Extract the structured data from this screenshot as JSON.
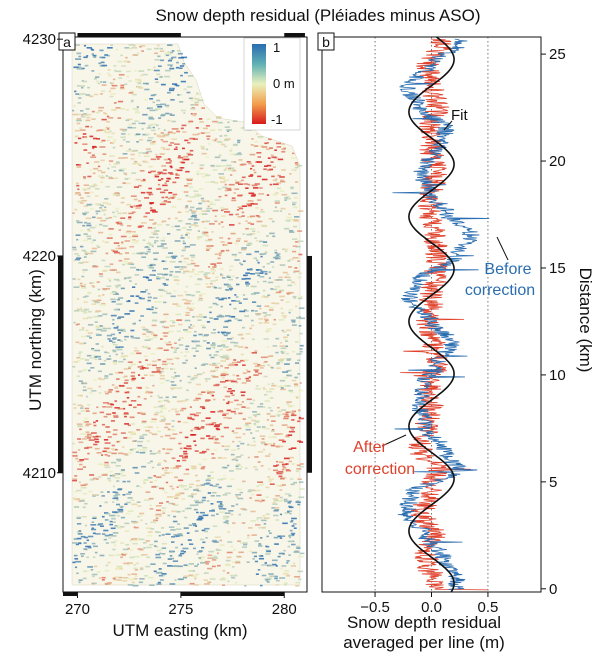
{
  "figure": {
    "title": "Snow depth residual (Pléiades minus ASO)"
  },
  "chart_data": [
    {
      "panel_label": "a",
      "type": "heatmap",
      "xlabel": "UTM easting (km)",
      "ylabel": "UTM northing (km)",
      "x_ticks": [
        270,
        275,
        280
      ],
      "y_ticks": [
        4210,
        4220,
        4230
      ],
      "xlim": [
        269.3,
        281.1
      ],
      "ylim": [
        4204.5,
        4230.1
      ],
      "colorbar": {
        "tick_labels": [
          "1",
          "0 m",
          "-1"
        ],
        "values": [
          1,
          0,
          -1
        ],
        "colors": [
          "#2a6db0",
          "#e9f1bd",
          "#d7191c"
        ]
      }
    },
    {
      "panel_label": "b",
      "type": "line",
      "xlabel_line1": "Snow depth residual",
      "xlabel_line2": "averaged per line (m)",
      "ylabel": "Distance (km)",
      "x_ticks": [
        -0.5,
        0.0,
        0.5
      ],
      "x_tick_labels": [
        "−0.5",
        "0.0",
        "0.5"
      ],
      "y_ticks": [
        0,
        5,
        10,
        15,
        20,
        25
      ],
      "xlim": [
        -0.97,
        0.97
      ],
      "ylim": [
        -0.15,
        25.8
      ],
      "grid": "dotted vertical lines at x ticks",
      "annotations": {
        "fit": "Fit",
        "before_line1": "Before",
        "before_line2": "correction",
        "after_line1": "After",
        "after_line2": "correction"
      },
      "series": [
        {
          "name": "Before correction",
          "color": "#2a6db0",
          "y": [
            0.5,
            1.5,
            2.5,
            3.5,
            4.5,
            5.5,
            6.5,
            7.5,
            8.5,
            9.5,
            10.5,
            11.5,
            12.5,
            13.5,
            14.5,
            15.5,
            16.5,
            17.5,
            18.5,
            19.5,
            20.5,
            21.5,
            22.5,
            23.5,
            24.5,
            25.5
          ],
          "x": [
            0.22,
            0.1,
            -0.05,
            -0.22,
            -0.18,
            0.25,
            0.12,
            -0.05,
            -0.1,
            -0.08,
            0.05,
            0.18,
            0.0,
            -0.2,
            -0.1,
            0.2,
            0.35,
            0.15,
            -0.02,
            -0.1,
            0.05,
            0.13,
            -0.1,
            -0.22,
            0.0,
            0.25
          ]
        },
        {
          "name": "After correction",
          "color": "#e0402a",
          "y": [
            0.5,
            1.5,
            2.5,
            3.5,
            4.5,
            5.5,
            6.5,
            7.5,
            8.5,
            9.5,
            10.5,
            11.5,
            12.5,
            13.5,
            14.5,
            15.5,
            16.5,
            17.5,
            18.5,
            19.5,
            20.5,
            21.5,
            22.5,
            23.5,
            24.5,
            25.5
          ],
          "x": [
            0.0,
            -0.05,
            0.02,
            -0.08,
            -0.02,
            0.05,
            -0.1,
            -0.05,
            0.0,
            -0.02,
            0.05,
            0.02,
            -0.03,
            0.0,
            0.03,
            0.05,
            0.02,
            -0.02,
            0.0,
            0.03,
            0.0,
            -0.02,
            0.05,
            0.0,
            -0.03,
            0.1
          ]
        },
        {
          "name": "Fit",
          "color": "#111111",
          "amplitude": 0.2,
          "wavelength_km": 4.9,
          "phase_rad": 1.25,
          "offset": 0.0
        }
      ]
    }
  ]
}
